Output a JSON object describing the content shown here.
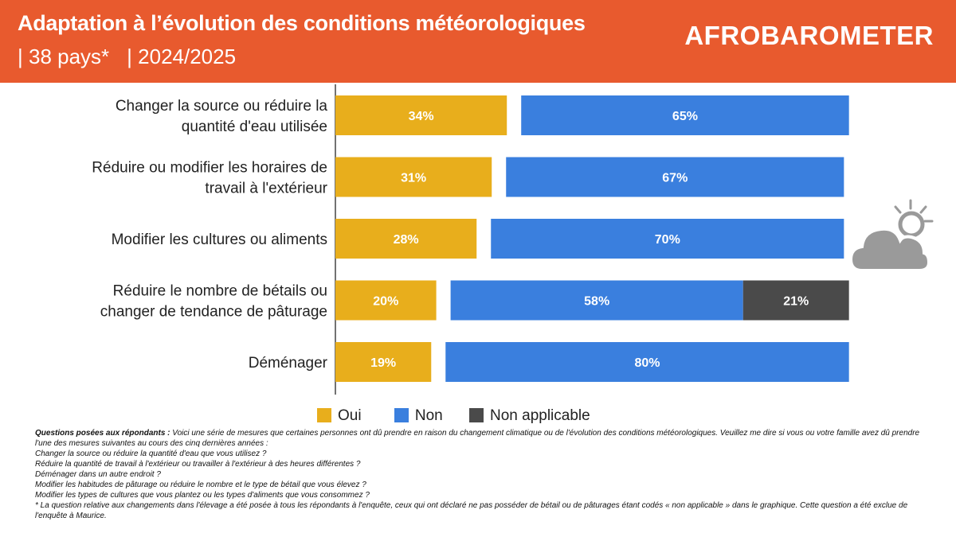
{
  "header": {
    "title": "Adaptation à l’évolution des conditions météorologiques",
    "subtitle_countries": "| 38 pays*",
    "subtitle_period": "| 2024/2025",
    "logo": "AFROBAROMETER",
    "background_color": "#e85a2e"
  },
  "chart_data": {
    "type": "bar",
    "orientation": "horizontal",
    "stacked": true,
    "categories": [
      [
        "Changer la source ou réduire la",
        "quantité d'eau utilisée"
      ],
      [
        "Réduire ou modifier les horaires de",
        "travail à l'extérieur"
      ],
      [
        "Modifier les cultures ou aliments"
      ],
      [
        "Réduire le nombre de bétails ou",
        "changer de tendance de pâturage"
      ],
      [
        "Déménager"
      ]
    ],
    "series": [
      {
        "name": "Oui",
        "color": "#e8ae1c",
        "values": [
          34,
          31,
          28,
          20,
          19
        ]
      },
      {
        "name": "Non",
        "color": "#3a7fde",
        "values": [
          65,
          67,
          70,
          58,
          80
        ]
      },
      {
        "name": "Non applicable",
        "color": "#4a4a4a",
        "values": [
          null,
          null,
          null,
          21,
          null
        ]
      }
    ],
    "value_suffix": "%",
    "xlim": [
      0,
      100
    ],
    "legend_position": "bottom",
    "grid": false
  },
  "legend": [
    "Oui",
    "Non",
    "Non applicable"
  ],
  "notes": {
    "label": "Questions posées aux répondants :",
    "intro": "Voici une série de mesures que certaines personnes ont dû prendre en raison du changement climatique ou de l'évolution des conditions météorologiques. Veuillez me dire si vous ou votre famille avez dû prendre l'une des mesures suivantes au cours des cinq dernières années :",
    "questions": [
      "Changer la source ou réduire la quantité d'eau que vous utilisez ?",
      "Réduire la quantité de travail à l'extérieur ou travailler à l'extérieur à des heures différentes ?",
      "Déménager dans un autre endroit ?",
      "Modifier les habitudes de pâturage ou réduire le nombre et le type de bétail que vous élevez ?",
      "Modifier les types de cultures que vous plantez ou les types d'aliments que vous consommez ?"
    ],
    "footnote": "* La question relative aux changements dans l'élevage a été posée à tous les répondants à l'enquête, ceux qui ont déclaré ne pas posséder de bétail ou de pâturages étant codés « non applicable » dans le graphique. Cette question a été exclue de l'enquête à Maurice."
  },
  "icons": {
    "weather": "partly-cloudy-icon"
  }
}
